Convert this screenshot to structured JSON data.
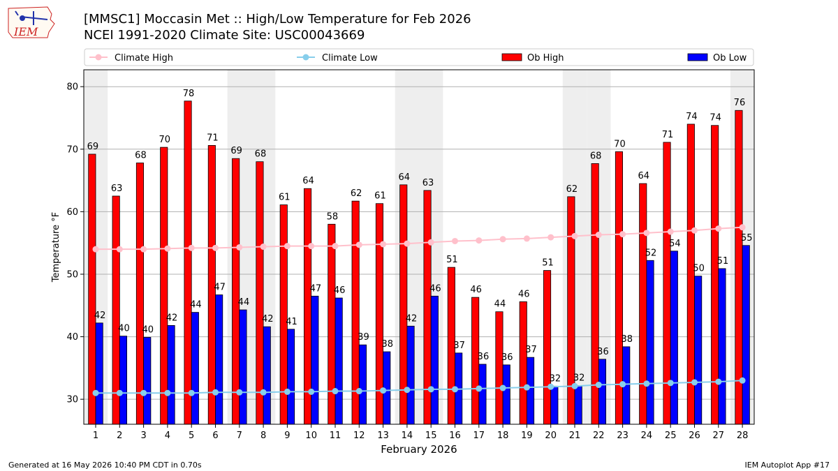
{
  "logo": {
    "text": "IEM",
    "color": "#cc2222"
  },
  "title": {
    "line1": "[MMSC1] Moccasin Met :: High/Low Temperature for Feb 2026",
    "line2": "NCEI 1991-2020 Climate Site: USC00043669"
  },
  "footer": {
    "left": "Generated at 16 May 2026 10:40 PM CDT in 0.70s",
    "right": "IEM Autoplot App #17"
  },
  "chart_data": {
    "type": "bar",
    "xlabel": "February 2026",
    "ylabel": "Temperature °F",
    "ylim": [
      26,
      82.7
    ],
    "yticks": [
      30,
      40,
      50,
      60,
      70,
      80
    ],
    "grid": true,
    "legend_position": "top",
    "weekend_shading_days": [
      1,
      7,
      8,
      14,
      15,
      21,
      22,
      28
    ],
    "categories": [
      "1",
      "2",
      "3",
      "4",
      "5",
      "6",
      "7",
      "8",
      "9",
      "10",
      "11",
      "12",
      "13",
      "14",
      "15",
      "16",
      "17",
      "18",
      "19",
      "20",
      "21",
      "22",
      "23",
      "24",
      "25",
      "26",
      "27",
      "28"
    ],
    "series": [
      {
        "name": "Ob High",
        "kind": "bar",
        "color": "#ff0000",
        "values": [
          69.2,
          62.5,
          67.8,
          70.3,
          77.7,
          70.6,
          68.5,
          68.0,
          61.1,
          63.7,
          58.0,
          61.7,
          61.3,
          64.3,
          63.4,
          51.1,
          46.3,
          44.0,
          45.6,
          50.6,
          62.4,
          67.7,
          69.6,
          64.5,
          71.1,
          74.0,
          73.8,
          76.2
        ],
        "labels": [
          "69",
          "63",
          "68",
          "70",
          "78",
          "71",
          "69",
          "68",
          "61",
          "64",
          "58",
          "62",
          "61",
          "64",
          "63",
          "51",
          "46",
          "44",
          "46",
          "51",
          "62",
          "68",
          "70",
          "64",
          "71",
          "74",
          "74",
          "76"
        ]
      },
      {
        "name": "Ob Low",
        "kind": "bar",
        "color": "#0000ff",
        "values": [
          42.2,
          40.1,
          39.9,
          41.8,
          43.9,
          46.7,
          44.3,
          41.6,
          41.2,
          46.5,
          46.2,
          38.7,
          37.6,
          41.7,
          46.5,
          37.4,
          35.6,
          35.5,
          36.7,
          32.1,
          32.2,
          36.4,
          38.4,
          52.2,
          53.7,
          49.7,
          50.9,
          54.6
        ],
        "labels": [
          "42",
          "40",
          "40",
          "42",
          "44",
          "47",
          "44",
          "42",
          "41",
          "47",
          "46",
          "39",
          "38",
          "42",
          "46",
          "37",
          "36",
          "36",
          "37",
          "32",
          "32",
          "36",
          "38",
          "52",
          "54",
          "50",
          "51",
          "55"
        ]
      },
      {
        "name": "Climate High",
        "kind": "line",
        "color": "#ffc0cb",
        "values": [
          54.0,
          54.0,
          54.0,
          54.1,
          54.2,
          54.2,
          54.3,
          54.4,
          54.5,
          54.5,
          54.5,
          54.7,
          54.8,
          54.9,
          55.1,
          55.3,
          55.4,
          55.6,
          55.7,
          55.9,
          56.1,
          56.3,
          56.4,
          56.6,
          56.8,
          57.0,
          57.3,
          57.5
        ]
      },
      {
        "name": "Climate Low",
        "kind": "line",
        "color": "#87ceeb",
        "values": [
          31.0,
          31.0,
          31.0,
          31.0,
          31.0,
          31.1,
          31.1,
          31.1,
          31.2,
          31.2,
          31.3,
          31.3,
          31.4,
          31.5,
          31.6,
          31.6,
          31.7,
          31.8,
          31.9,
          32.0,
          32.1,
          32.3,
          32.4,
          32.5,
          32.6,
          32.7,
          32.8,
          33.0
        ]
      }
    ]
  }
}
